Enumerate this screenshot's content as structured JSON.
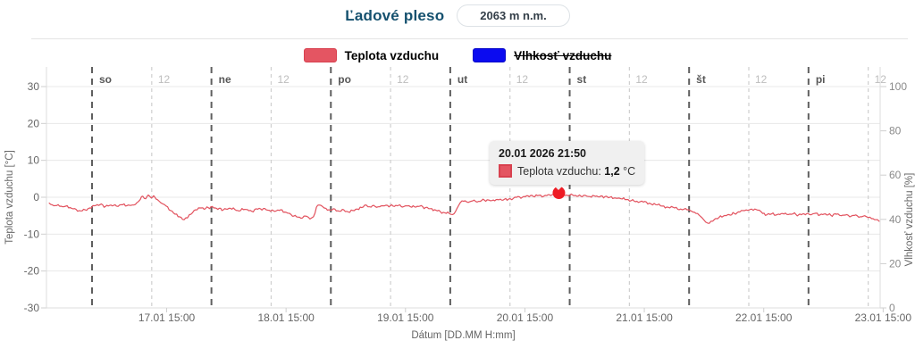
{
  "header": {
    "title": "Ľadové pleso",
    "elevation_badge": "2063 m n.m."
  },
  "tooltip": {
    "title": "20.01 2026 21:50",
    "series_label": "Teplota vzduchu:",
    "value": "1,2",
    "unit": "°C"
  },
  "colors": {
    "title": "#14506e",
    "temp_series_fill": "#e45562",
    "temp_series_border": "#d8414f",
    "humidity_series_fill": "#0b0bf0",
    "humidity_series_border": "#0909c8",
    "temp_line": "#e2525e",
    "highlight_dot": "#ee1b24",
    "day_dash": "#5f5f5f",
    "noon_dash": "#cfcfcf",
    "grid": "#e8e8e8",
    "axis_border": "#dcdcdc"
  },
  "chart_data": {
    "type": "line",
    "title": "Ľadové pleso",
    "xlabel": "Dátum [DD.MM H:mm]",
    "ylabel_left": "Teplota vzduchu [°C]",
    "ylabel_right": "Vlhkosť vzduchu [%]",
    "y_left_range": [
      -30,
      30
    ],
    "y_left_ticks": [
      30,
      20,
      10,
      0,
      -10,
      -20,
      -30
    ],
    "y_right_range": [
      0,
      100
    ],
    "y_right_ticks": [
      100,
      80,
      60,
      40,
      20,
      0
    ],
    "x_hour_range": [
      -8.62,
      158.4
    ],
    "day_lines": [
      {
        "hour": 0,
        "label": "so"
      },
      {
        "hour": 24,
        "label": "ne"
      },
      {
        "hour": 48,
        "label": "po"
      },
      {
        "hour": 72,
        "label": "ut"
      },
      {
        "hour": 96,
        "label": "st"
      },
      {
        "hour": 120,
        "label": "št"
      },
      {
        "hour": 144,
        "label": "pi"
      }
    ],
    "noon_lines": [
      {
        "hour": 12,
        "label": "12"
      },
      {
        "hour": 36,
        "label": "12"
      },
      {
        "hour": 60,
        "label": "12"
      },
      {
        "hour": 84,
        "label": "12"
      },
      {
        "hour": 108,
        "label": "12"
      },
      {
        "hour": 132,
        "label": "12"
      },
      {
        "hour": 156,
        "label": "12"
      }
    ],
    "x_ticks": [
      {
        "hour": 15,
        "label": "17.01 15:00"
      },
      {
        "hour": 39,
        "label": "18.01 15:00"
      },
      {
        "hour": 63,
        "label": "19.01 15:00"
      },
      {
        "hour": 87,
        "label": "20.01 15:00"
      },
      {
        "hour": 111,
        "label": "21.01 15:00"
      },
      {
        "hour": 135,
        "label": "22.01 15:00"
      },
      {
        "hour": 159,
        "label": "23.01 15:00"
      }
    ],
    "series": [
      {
        "name": "Teplota vzduchu",
        "visible": true,
        "points": [
          [
            -8.6,
            -1.6
          ],
          [
            -7.7,
            -2.3
          ],
          [
            -6.8,
            -2.0
          ],
          [
            -5.9,
            -2.6
          ],
          [
            -5.0,
            -2.3
          ],
          [
            -4.1,
            -3.0
          ],
          [
            -3.2,
            -3.3
          ],
          [
            -2.3,
            -3.7
          ],
          [
            -1.4,
            -3.4
          ],
          [
            -0.5,
            -2.9
          ],
          [
            0.5,
            -2.3
          ],
          [
            1.6,
            -2.0
          ],
          [
            2.7,
            -2.5
          ],
          [
            3.8,
            -2.1
          ],
          [
            4.9,
            -2.4
          ],
          [
            5.9,
            -2.0
          ],
          [
            7.0,
            -2.3
          ],
          [
            8.1,
            -2.1
          ],
          [
            9.0,
            -1.5
          ],
          [
            9.7,
            -0.6
          ],
          [
            10.2,
            0.3
          ],
          [
            10.8,
            -0.4
          ],
          [
            11.3,
            0.6
          ],
          [
            11.9,
            -0.2
          ],
          [
            12.4,
            0.4
          ],
          [
            12.9,
            -0.5
          ],
          [
            13.5,
            -1.1
          ],
          [
            14.2,
            -1.8
          ],
          [
            14.9,
            -2.4
          ],
          [
            15.8,
            -3.6
          ],
          [
            16.7,
            -4.6
          ],
          [
            17.6,
            -5.3
          ],
          [
            18.5,
            -6.1
          ],
          [
            19.2,
            -5.6
          ],
          [
            19.9,
            -4.6
          ],
          [
            20.8,
            -3.4
          ],
          [
            21.7,
            -2.9
          ],
          [
            22.8,
            -3.1
          ],
          [
            23.9,
            -2.6
          ],
          [
            25.0,
            -3.0
          ],
          [
            26.4,
            -3.4
          ],
          [
            27.8,
            -3.0
          ],
          [
            29.3,
            -3.6
          ],
          [
            30.7,
            -3.3
          ],
          [
            32.1,
            -3.8
          ],
          [
            33.6,
            -3.0
          ],
          [
            35.0,
            -3.4
          ],
          [
            36.5,
            -3.7
          ],
          [
            37.9,
            -3.4
          ],
          [
            39.0,
            -4.1
          ],
          [
            40.0,
            -4.7
          ],
          [
            41.1,
            -5.3
          ],
          [
            42.0,
            -5.7
          ],
          [
            42.9,
            -5.1
          ],
          [
            43.8,
            -5.9
          ],
          [
            44.5,
            -5.3
          ],
          [
            45.1,
            -2.7
          ],
          [
            45.6,
            -2.1
          ],
          [
            46.3,
            -2.5
          ],
          [
            47.0,
            -3.0
          ],
          [
            47.9,
            -3.5
          ],
          [
            48.8,
            -3.2
          ],
          [
            49.7,
            -3.8
          ],
          [
            50.6,
            -3.4
          ],
          [
            51.5,
            -4.0
          ],
          [
            52.4,
            -3.6
          ],
          [
            53.3,
            -3.2
          ],
          [
            54.2,
            -2.8
          ],
          [
            55.1,
            -2.1
          ],
          [
            55.8,
            -2.6
          ],
          [
            56.6,
            -2.2
          ],
          [
            57.5,
            -2.6
          ],
          [
            58.4,
            -2.3
          ],
          [
            59.4,
            -2.2
          ],
          [
            60.5,
            -2.4
          ],
          [
            61.6,
            -2.2
          ],
          [
            62.7,
            -2.5
          ],
          [
            63.7,
            -2.3
          ],
          [
            64.8,
            -2.6
          ],
          [
            65.9,
            -2.4
          ],
          [
            67.0,
            -2.8
          ],
          [
            68.0,
            -3.1
          ],
          [
            69.1,
            -3.5
          ],
          [
            70.0,
            -3.9
          ],
          [
            70.9,
            -4.2
          ],
          [
            71.8,
            -4.4
          ],
          [
            72.5,
            -4.7
          ],
          [
            73.3,
            -3.2
          ],
          [
            74.0,
            -1.5
          ],
          [
            74.7,
            -1.1
          ],
          [
            75.6,
            -1.4
          ],
          [
            76.5,
            -1.0
          ],
          [
            77.4,
            -1.3
          ],
          [
            78.3,
            -0.9
          ],
          [
            79.4,
            -0.7
          ],
          [
            80.4,
            -0.9
          ],
          [
            81.5,
            -0.6
          ],
          [
            82.6,
            -0.8
          ],
          [
            83.7,
            -0.5
          ],
          [
            84.7,
            -0.3
          ],
          [
            85.6,
            0.2
          ],
          [
            86.5,
            0.0
          ],
          [
            87.6,
            0.4
          ],
          [
            88.7,
            0.2
          ],
          [
            89.8,
            0.5
          ],
          [
            90.8,
            0.3
          ],
          [
            91.9,
            0.7
          ],
          [
            92.8,
            0.9
          ],
          [
            93.83,
            1.2
          ],
          [
            94.8,
            0.7
          ],
          [
            95.7,
            0.4
          ],
          [
            96.6,
            0.6
          ],
          [
            97.7,
            0.3
          ],
          [
            98.8,
            0.5
          ],
          [
            99.8,
            0.2
          ],
          [
            100.9,
            0.4
          ],
          [
            102.0,
            0.1
          ],
          [
            103.1,
            0.2
          ],
          [
            104.1,
            0.0
          ],
          [
            105.2,
            -0.2
          ],
          [
            106.3,
            -0.4
          ],
          [
            107.4,
            -0.6
          ],
          [
            108.4,
            -0.9
          ],
          [
            109.5,
            -1.1
          ],
          [
            110.8,
            -1.3
          ],
          [
            112.0,
            -1.6
          ],
          [
            113.3,
            -2.0
          ],
          [
            114.6,
            -2.4
          ],
          [
            115.8,
            -2.7
          ],
          [
            117.1,
            -2.9
          ],
          [
            118.3,
            -3.2
          ],
          [
            119.6,
            -3.4
          ],
          [
            120.5,
            -3.8
          ],
          [
            121.4,
            -4.4
          ],
          [
            122.3,
            -5.2
          ],
          [
            123.0,
            -6.2
          ],
          [
            123.7,
            -7.0
          ],
          [
            124.4,
            -6.5
          ],
          [
            125.1,
            -6.0
          ],
          [
            126.0,
            -5.5
          ],
          [
            126.9,
            -5.1
          ],
          [
            128.0,
            -4.7
          ],
          [
            129.1,
            -4.4
          ],
          [
            130.2,
            -4.0
          ],
          [
            131.2,
            -3.6
          ],
          [
            132.3,
            -3.3
          ],
          [
            133.2,
            -3.2
          ],
          [
            134.1,
            -3.5
          ],
          [
            134.8,
            -4.4
          ],
          [
            135.6,
            -4.8
          ],
          [
            136.6,
            -4.5
          ],
          [
            137.7,
            -4.7
          ],
          [
            138.8,
            -4.4
          ],
          [
            139.9,
            -4.7
          ],
          [
            140.9,
            -4.5
          ],
          [
            142.0,
            -4.8
          ],
          [
            143.1,
            -4.5
          ],
          [
            144.2,
            -4.7
          ],
          [
            145.2,
            -4.4
          ],
          [
            146.3,
            -4.8
          ],
          [
            147.4,
            -4.5
          ],
          [
            148.5,
            -4.9
          ],
          [
            149.6,
            -4.6
          ],
          [
            150.6,
            -5.0
          ],
          [
            151.7,
            -4.7
          ],
          [
            152.6,
            -5.1
          ],
          [
            153.5,
            -4.8
          ],
          [
            154.4,
            -5.3
          ],
          [
            155.3,
            -5.0
          ],
          [
            156.0,
            -5.5
          ],
          [
            156.7,
            -5.8
          ],
          [
            157.5,
            -6.1
          ],
          [
            158.2,
            -6.5
          ]
        ]
      },
      {
        "name": "Vlhkosť vzduchu",
        "visible": false
      }
    ],
    "highlight": {
      "hour": 93.83,
      "value": 1.2,
      "label": "20.01 2026 21:50"
    },
    "legend_position": "top",
    "grid": true
  }
}
